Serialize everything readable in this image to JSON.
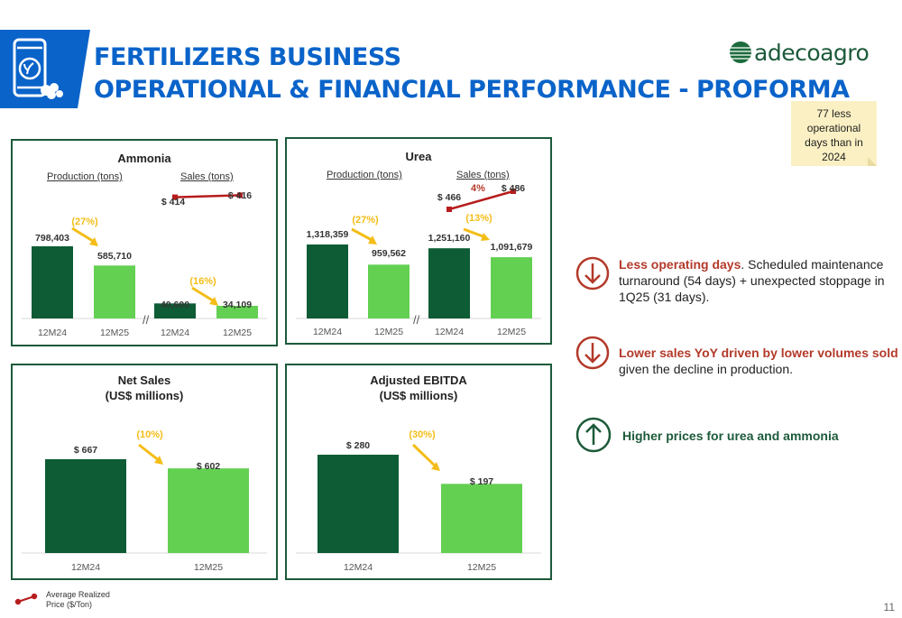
{
  "header": {
    "title_line1": "FERTILIZERS BUSINESS",
    "title_line2": "OPERATIONAL & FINANCIAL PERFORMANCE - PROFORMA",
    "logo_text": "adecoagro",
    "icon": "fertilizer-bag-icon"
  },
  "note": {
    "text": "77 less operational days than in 2024"
  },
  "colors": {
    "dark_green": "#0d5c35",
    "light_green": "#63d052",
    "arrow_yellow": "#f4bd17",
    "price_red": "#b71c1c",
    "title_blue": "#0a63c9",
    "panel_border": "#1c5a3a",
    "note_bg": "#fbf0c3"
  },
  "chart_data": [
    {
      "type": "bar",
      "title": "Ammonia",
      "groups": [
        {
          "label": "Production (tons)",
          "categories": [
            "12M24",
            "12M25"
          ],
          "values": [
            798403,
            585710
          ],
          "value_labels": [
            "798,403",
            "585,710"
          ],
          "change": "(27%)"
        },
        {
          "label": "Sales (tons)",
          "categories": [
            "12M24",
            "12M25"
          ],
          "values": [
            40600,
            34109
          ],
          "value_labels": [
            "40,600",
            "34,109"
          ],
          "change": "(16%)"
        }
      ],
      "price_line": {
        "values": [
          414,
          416
        ],
        "labels": [
          "$ 414",
          "$ 416"
        ],
        "change": ""
      }
    },
    {
      "type": "bar",
      "title": "Urea",
      "groups": [
        {
          "label": "Production (tons)",
          "categories": [
            "12M24",
            "12M25"
          ],
          "values": [
            1318359,
            959562
          ],
          "value_labels": [
            "1,318,359",
            "959,562"
          ],
          "change": "(27%)"
        },
        {
          "label": "Sales (tons)",
          "categories": [
            "12M24",
            "12M25"
          ],
          "values": [
            1251160,
            1091679
          ],
          "value_labels": [
            "1,251,160",
            "1,091,679"
          ],
          "change": "(13%)"
        }
      ],
      "price_line": {
        "values": [
          466,
          486
        ],
        "labels": [
          "$ 466",
          "$ 486"
        ],
        "change": "4%"
      }
    },
    {
      "type": "bar",
      "title": "Net Sales\n(US$ millions)",
      "categories": [
        "12M24",
        "12M25"
      ],
      "values": [
        667,
        602
      ],
      "value_labels": [
        "$ 667",
        "$ 602"
      ],
      "change": "(10%)"
    },
    {
      "type": "bar",
      "title": "Adjusted EBITDA\n(US$ millions)",
      "categories": [
        "12M24",
        "12M25"
      ],
      "values": [
        280,
        197
      ],
      "value_labels": [
        "$ 280",
        "$ 197"
      ],
      "change": "(30%)"
    }
  ],
  "bullets": [
    {
      "icon": "arrow-down-circle-icon",
      "bold": "Less operating days",
      "rest": ". Scheduled maintenance turnaround (54 days) + unexpected stoppage in 1Q25 (31 days)."
    },
    {
      "icon": "arrow-down-circle-icon",
      "bold": "Lower sales YoY driven by lower volumes sold",
      "rest": " given the decline in production."
    },
    {
      "icon": "arrow-up-circle-icon",
      "bold": "Higher prices for urea and ammonia",
      "rest": ""
    }
  ],
  "legend": {
    "line1": "Average Realized",
    "line2": "Price ($/Ton)",
    "icon": "price-line-marker-icon"
  },
  "page_number": "11"
}
